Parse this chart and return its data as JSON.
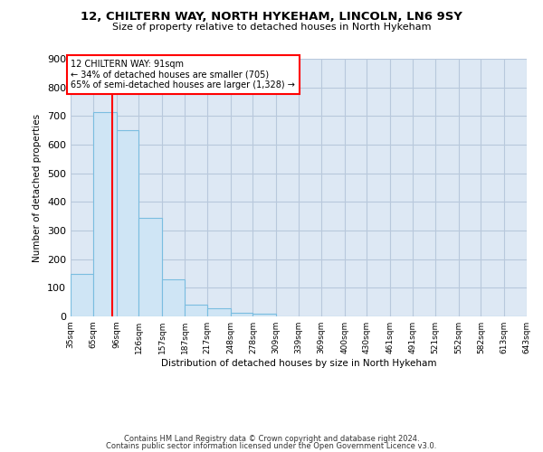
{
  "title": "12, CHILTERN WAY, NORTH HYKEHAM, LINCOLN, LN6 9SY",
  "subtitle": "Size of property relative to detached houses in North Hykeham",
  "xlabel": "Distribution of detached houses by size in North Hykeham",
  "ylabel": "Number of detached properties",
  "bar_color": "#cfe5f5",
  "bar_edge_color": "#7abde0",
  "grid_color": "#b8c8dc",
  "bg_color": "#dde8f4",
  "vline_x": 91,
  "vline_color": "red",
  "annotation_line1": "12 CHILTERN WAY: 91sqm",
  "annotation_line2": "← 34% of detached houses are smaller (705)",
  "annotation_line3": "65% of semi-detached houses are larger (1,328) →",
  "annotation_box_color": "white",
  "annotation_box_edge": "red",
  "footer1": "Contains HM Land Registry data © Crown copyright and database right 2024.",
  "footer2": "Contains public sector information licensed under the Open Government Licence v3.0.",
  "bin_edges": [
    35,
    65,
    96,
    126,
    157,
    187,
    217,
    248,
    278,
    309,
    339,
    369,
    400,
    430,
    461,
    491,
    521,
    552,
    582,
    613,
    643
  ],
  "bar_heights": [
    150,
    715,
    650,
    343,
    130,
    40,
    30,
    13,
    10,
    0,
    0,
    0,
    0,
    0,
    0,
    0,
    0,
    0,
    0,
    0
  ],
  "ylim": [
    0,
    900
  ],
  "yticks": [
    0,
    100,
    200,
    300,
    400,
    500,
    600,
    700,
    800,
    900
  ]
}
